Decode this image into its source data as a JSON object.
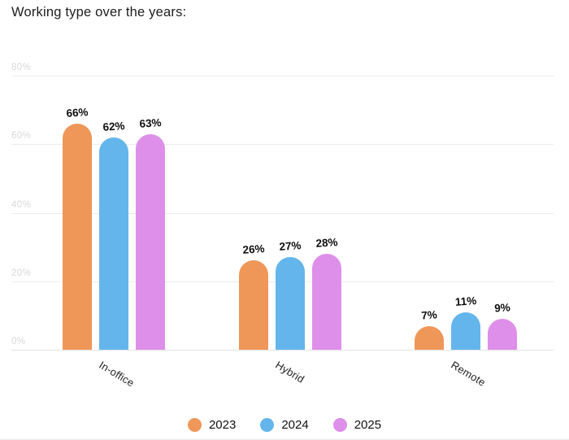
{
  "chart_data": {
    "type": "bar",
    "title": "Working type over the years:",
    "categories": [
      "In-office",
      "Hybrid",
      "Remote"
    ],
    "series": [
      {
        "name": "2023",
        "color": "#EF9659",
        "values": [
          66,
          26,
          7
        ]
      },
      {
        "name": "2024",
        "color": "#64B5EC",
        "values": [
          62,
          27,
          11
        ]
      },
      {
        "name": "2025",
        "color": "#DE8FE9",
        "values": [
          63,
          28,
          9
        ]
      }
    ],
    "value_label_suffix": "%",
    "y_axis": {
      "ticks": [
        {
          "label": "80%",
          "value": 80
        },
        {
          "label": "60%",
          "value": 60
        },
        {
          "label": "40%",
          "value": 40
        },
        {
          "label": "20%",
          "value": 20
        },
        {
          "label": "0%",
          "value": 0
        }
      ],
      "ylim": [
        0,
        80
      ]
    },
    "grid": "horizontal",
    "legend_position": "bottom",
    "colors": {
      "title_text": "#1d1d1f",
      "value_label_text": "#0e0e0e",
      "axis_tick_text": "#d8d8d8",
      "gridline": "#ececec"
    }
  }
}
